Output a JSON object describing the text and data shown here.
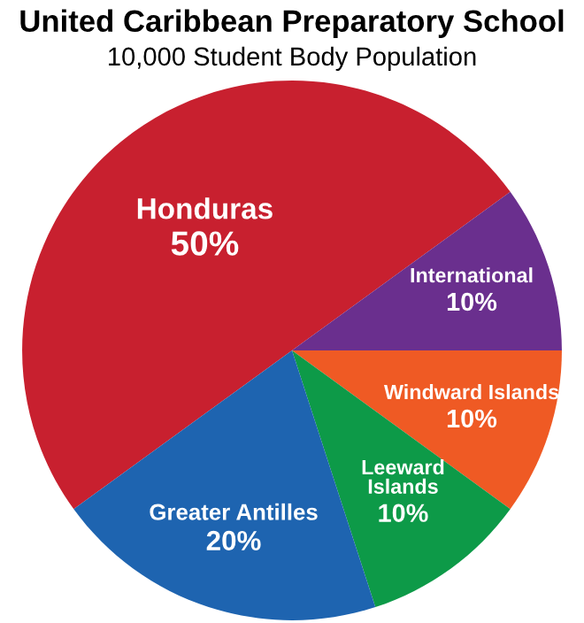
{
  "chart_data": {
    "type": "pie",
    "title": "United Caribbean Preparatory School",
    "subtitle": "10,000 Student Body Population",
    "categories": [
      "Honduras",
      "International",
      "Windward Islands",
      "Leeward\nIslands",
      "Greater Antilles"
    ],
    "values": [
      50,
      10,
      10,
      10,
      20
    ],
    "value_labels": [
      "50%",
      "10%",
      "10%",
      "10%",
      "20%"
    ],
    "colors": [
      "#c8202f",
      "#6a2f8e",
      "#ef5a24",
      "#0d9a48",
      "#1e64b0"
    ]
  }
}
